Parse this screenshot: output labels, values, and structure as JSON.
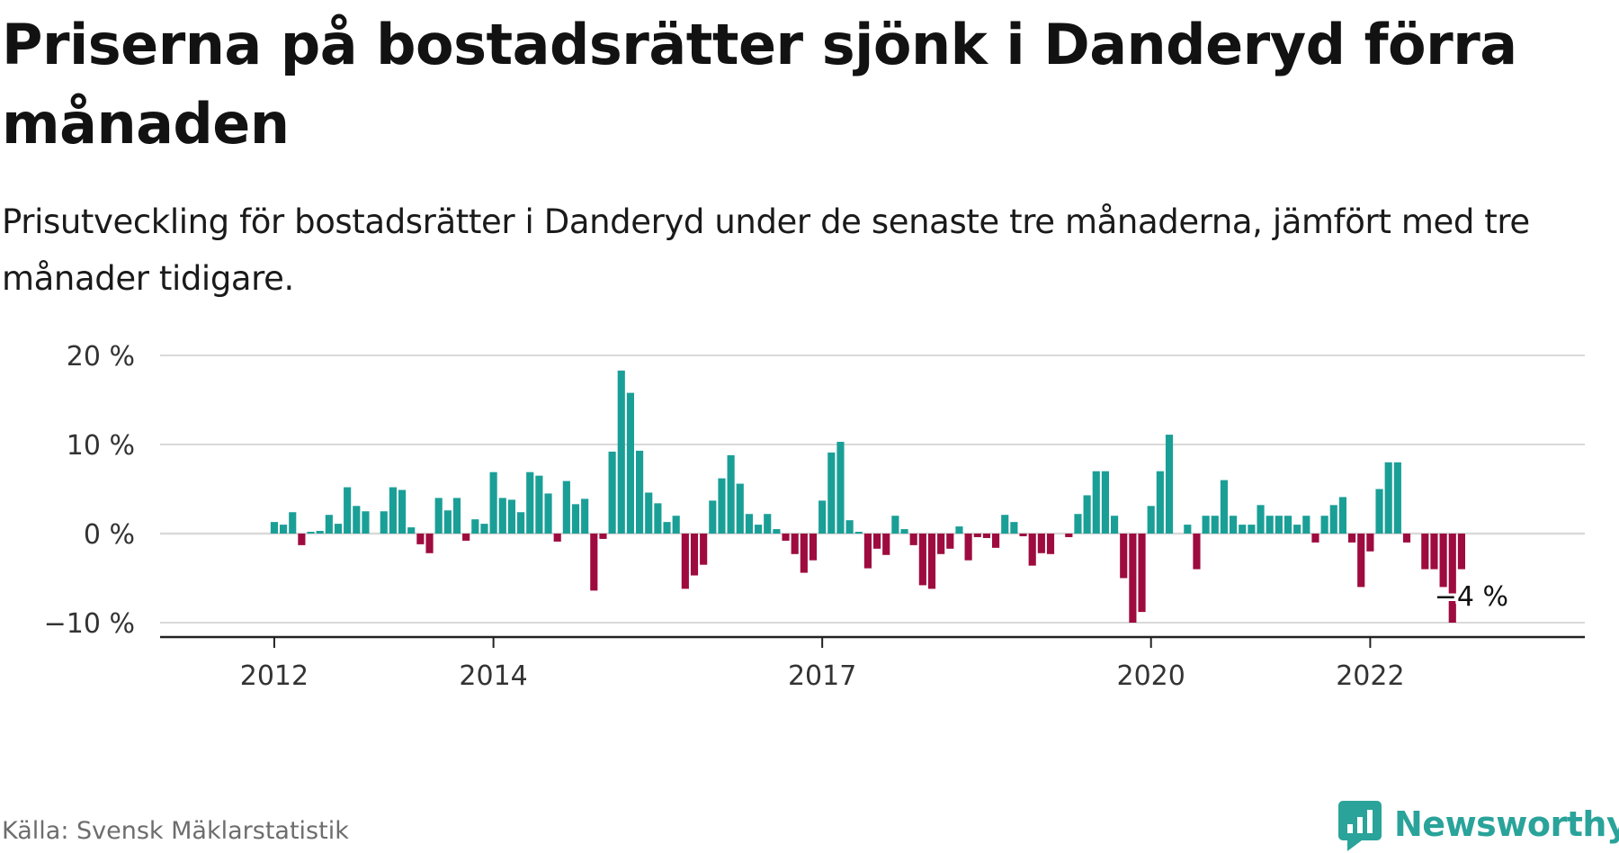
{
  "title": "Priserna på bostadsrätter sjönk i Danderyd förra månaden",
  "subtitle": "Prisutveckling för bostadsrätter i Danderyd under de senaste tre månaderna, jämfört med tre månader tidigare.",
  "source": "Källa: Svensk Mäklarstatistik",
  "brand": "Newsworthy",
  "colors": {
    "positive": "#1a9f97",
    "negative": "#9e0b3f",
    "grid": "#d9d9d9",
    "axis": "#222222",
    "brand": "#2aa39a"
  },
  "chart_data": {
    "type": "bar",
    "x_start": "2011-01",
    "x_end": "2023-12",
    "y_unit": "%",
    "ylim": [
      -11,
      21
    ],
    "y_ticks": [
      20,
      10,
      0,
      -10
    ],
    "y_tick_labels": [
      "20 %",
      "10 %",
      "0 %",
      "−10 %"
    ],
    "x_ticks": [
      "2012",
      "2014",
      "2017",
      "2020",
      "2022"
    ],
    "grid": true,
    "annotation": {
      "month": "2022-11",
      "label": "−4 %"
    },
    "months": [
      "2012-01",
      "2012-02",
      "2012-03",
      "2012-04",
      "2012-05",
      "2012-06",
      "2012-07",
      "2012-08",
      "2012-09",
      "2012-10",
      "2012-11",
      "2012-12",
      "2013-01",
      "2013-02",
      "2013-03",
      "2013-04",
      "2013-05",
      "2013-06",
      "2013-07",
      "2013-08",
      "2013-09",
      "2013-10",
      "2013-11",
      "2013-12",
      "2014-01",
      "2014-02",
      "2014-03",
      "2014-04",
      "2014-05",
      "2014-06",
      "2014-07",
      "2014-08",
      "2014-09",
      "2014-10",
      "2014-11",
      "2014-12",
      "2015-01",
      "2015-02",
      "2015-03",
      "2015-04",
      "2015-05",
      "2015-06",
      "2015-07",
      "2015-08",
      "2015-09",
      "2015-10",
      "2015-11",
      "2015-12",
      "2016-01",
      "2016-02",
      "2016-03",
      "2016-04",
      "2016-05",
      "2016-06",
      "2016-07",
      "2016-08",
      "2016-09",
      "2016-10",
      "2016-11",
      "2016-12",
      "2017-01",
      "2017-02",
      "2017-03",
      "2017-04",
      "2017-05",
      "2017-06",
      "2017-07",
      "2017-08",
      "2017-09",
      "2017-10",
      "2017-11",
      "2017-12",
      "2018-01",
      "2018-02",
      "2018-03",
      "2018-04",
      "2018-05",
      "2018-06",
      "2018-07",
      "2018-08",
      "2018-09",
      "2018-10",
      "2018-11",
      "2018-12",
      "2019-01",
      "2019-02",
      "2019-03",
      "2019-04",
      "2019-05",
      "2019-06",
      "2019-07",
      "2019-08",
      "2019-09",
      "2019-10",
      "2019-11",
      "2019-12",
      "2020-01",
      "2020-02",
      "2020-03",
      "2020-04",
      "2020-05",
      "2020-06",
      "2020-07",
      "2020-08",
      "2020-09",
      "2020-10",
      "2020-11",
      "2020-12",
      "2021-01",
      "2021-02",
      "2021-03",
      "2021-04",
      "2021-05",
      "2021-06",
      "2021-07",
      "2021-08",
      "2021-09",
      "2021-10",
      "2021-11",
      "2021-12",
      "2022-01",
      "2022-02",
      "2022-03",
      "2022-04",
      "2022-05",
      "2022-06",
      "2022-07",
      "2022-08",
      "2022-09",
      "2022-10",
      "2022-11"
    ],
    "values": [
      1.3,
      1.0,
      2.4,
      -1.3,
      0.2,
      0.3,
      2.1,
      1.1,
      5.2,
      3.1,
      2.5,
      null,
      2.5,
      5.2,
      4.9,
      0.7,
      -1.2,
      -2.2,
      4.0,
      2.6,
      4.0,
      -0.8,
      1.6,
      1.1,
      6.9,
      4.0,
      3.8,
      2.4,
      6.9,
      6.5,
      4.5,
      -0.9,
      5.9,
      3.3,
      3.9,
      -6.4,
      -0.6,
      9.2,
      18.3,
      15.8,
      9.3,
      4.6,
      3.4,
      1.3,
      2.0,
      -6.2,
      -4.7,
      -3.5,
      3.7,
      6.2,
      8.8,
      5.6,
      2.2,
      1.0,
      2.2,
      0.5,
      -0.8,
      -2.3,
      -4.4,
      -3.0,
      3.7,
      9.1,
      10.3,
      1.5,
      0.2,
      -3.9,
      -1.7,
      -2.4,
      2.0,
      0.5,
      -1.3,
      -5.8,
      -6.2,
      -2.3,
      -1.7,
      0.8,
      -3.0,
      -0.4,
      -0.5,
      -1.6,
      2.1,
      1.3,
      -0.3,
      -3.6,
      -2.2,
      -2.3,
      null,
      -0.4,
      2.2,
      4.3,
      7.0,
      7.0,
      2.0,
      -5.0,
      -10.0,
      -8.8,
      3.1,
      7.0,
      11.1,
      null,
      1.0,
      -4.0,
      2.0,
      2.0,
      6.0,
      2.0,
      1.0,
      1.0,
      3.2,
      2.0,
      2.0,
      2.0,
      1.0,
      2.0,
      -1.0,
      2.0,
      3.2,
      4.1,
      -1.0,
      -6.0,
      -2.0,
      5.0,
      8.0,
      8.0,
      -1.0,
      null,
      -4.0,
      -4.0,
      -6.0,
      -10.0,
      -4.0
    ]
  }
}
